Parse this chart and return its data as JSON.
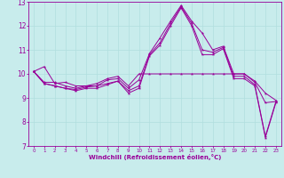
{
  "xlabel": "Windchill (Refroidissement éolien,°C)",
  "background_color": "#c8ecec",
  "grid_color": "#b0dede",
  "line_color": "#990099",
  "xlim": [
    -0.5,
    23.5
  ],
  "ylim": [
    7,
    13
  ],
  "yticks": [
    7,
    8,
    9,
    10,
    11,
    12,
    13
  ],
  "xticks": [
    0,
    1,
    2,
    3,
    4,
    5,
    6,
    7,
    8,
    9,
    10,
    11,
    12,
    13,
    14,
    15,
    16,
    17,
    18,
    19,
    20,
    21,
    22,
    23
  ],
  "line1_y": [
    10.1,
    10.3,
    9.6,
    9.65,
    9.5,
    9.5,
    9.6,
    9.8,
    9.9,
    9.5,
    10.0,
    10.0,
    10.0,
    10.0,
    10.0,
    10.0,
    10.0,
    10.0,
    10.0,
    10.0,
    10.0,
    9.7,
    9.2,
    8.9
  ],
  "line2_y": [
    10.1,
    9.65,
    9.65,
    9.5,
    9.4,
    9.5,
    9.5,
    9.75,
    9.8,
    9.4,
    9.75,
    10.85,
    11.5,
    12.2,
    12.85,
    12.2,
    11.7,
    11.0,
    11.15,
    10.0,
    10.0,
    9.65,
    8.8,
    8.85
  ],
  "line3_y": [
    10.1,
    9.6,
    9.5,
    9.4,
    9.35,
    9.45,
    9.5,
    9.6,
    9.7,
    9.3,
    9.5,
    10.8,
    11.3,
    12.1,
    12.8,
    12.1,
    11.0,
    10.9,
    11.1,
    9.9,
    9.9,
    9.55,
    7.4,
    8.85
  ],
  "line4_y": [
    10.1,
    9.6,
    9.5,
    9.4,
    9.3,
    9.4,
    9.4,
    9.55,
    9.7,
    9.2,
    9.4,
    10.75,
    11.2,
    12.0,
    12.75,
    12.0,
    10.8,
    10.8,
    11.05,
    9.8,
    9.8,
    9.5,
    7.35,
    8.8
  ]
}
